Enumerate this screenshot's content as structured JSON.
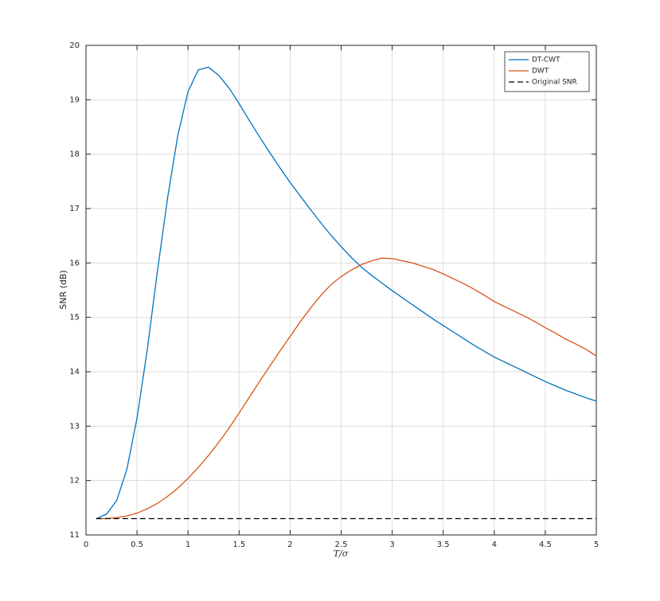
{
  "chart_data": {
    "type": "line",
    "xlabel": "T/σ",
    "ylabel": "SNR (dB)",
    "x": [
      0.1,
      0.2,
      0.3,
      0.4,
      0.5,
      0.6,
      0.7,
      0.8,
      0.9,
      1.0,
      1.1,
      1.2,
      1.3,
      1.4,
      1.5,
      1.6,
      1.7,
      1.8,
      1.9,
      2.0,
      2.1,
      2.2,
      2.3,
      2.4,
      2.5,
      2.6,
      2.7,
      2.8,
      2.9,
      3.0,
      3.1,
      3.2,
      3.3,
      3.4,
      3.5,
      3.6,
      3.7,
      3.8,
      3.9,
      4.0,
      4.1,
      4.2,
      4.3,
      4.4,
      4.5,
      4.6,
      4.7,
      4.8,
      4.9,
      5.0
    ],
    "series": [
      {
        "name": "DT-CWT",
        "color": "#0072bd",
        "dash": false,
        "values": [
          11.3,
          11.38,
          11.63,
          12.2,
          13.15,
          14.4,
          15.85,
          17.2,
          18.35,
          19.15,
          19.55,
          19.6,
          19.45,
          19.22,
          18.93,
          18.62,
          18.32,
          18.03,
          17.75,
          17.48,
          17.23,
          16.98,
          16.74,
          16.51,
          16.3,
          16.1,
          15.92,
          15.77,
          15.63,
          15.49,
          15.36,
          15.23,
          15.1,
          14.97,
          14.85,
          14.73,
          14.61,
          14.49,
          14.38,
          14.27,
          14.18,
          14.09,
          14.0,
          13.91,
          13.82,
          13.74,
          13.66,
          13.59,
          13.52,
          13.46
        ]
      },
      {
        "name": "DWT",
        "color": "#d95319",
        "dash": false,
        "values": [
          11.3,
          11.3,
          11.32,
          11.35,
          11.4,
          11.48,
          11.58,
          11.71,
          11.86,
          12.04,
          12.24,
          12.46,
          12.7,
          12.96,
          13.24,
          13.53,
          13.82,
          14.1,
          14.38,
          14.65,
          14.92,
          15.17,
          15.4,
          15.6,
          15.75,
          15.87,
          15.97,
          16.04,
          16.09,
          16.08,
          16.04,
          16.0,
          15.94,
          15.88,
          15.8,
          15.71,
          15.62,
          15.52,
          15.41,
          15.29,
          15.2,
          15.11,
          15.02,
          14.92,
          14.81,
          14.71,
          14.6,
          14.51,
          14.41,
          14.29
        ]
      },
      {
        "name": "Original SNR",
        "color": "#000000",
        "dash": true,
        "values": [
          11.3,
          11.3,
          11.3,
          11.3,
          11.3,
          11.3,
          11.3,
          11.3,
          11.3,
          11.3,
          11.3,
          11.3,
          11.3,
          11.3,
          11.3,
          11.3,
          11.3,
          11.3,
          11.3,
          11.3,
          11.3,
          11.3,
          11.3,
          11.3,
          11.3,
          11.3,
          11.3,
          11.3,
          11.3,
          11.3,
          11.3,
          11.3,
          11.3,
          11.3,
          11.3,
          11.3,
          11.3,
          11.3,
          11.3,
          11.3,
          11.3,
          11.3,
          11.3,
          11.3,
          11.3,
          11.3,
          11.3,
          11.3,
          11.3,
          11.3
        ]
      }
    ],
    "xlim": [
      0,
      5
    ],
    "ylim": [
      11,
      20
    ],
    "xticks": [
      0,
      0.5,
      1,
      1.5,
      2,
      2.5,
      3,
      3.5,
      4,
      4.5,
      5
    ],
    "yticks": [
      11,
      12,
      13,
      14,
      15,
      16,
      17,
      18,
      19,
      20
    ],
    "grid": true,
    "legend": "northeast"
  }
}
